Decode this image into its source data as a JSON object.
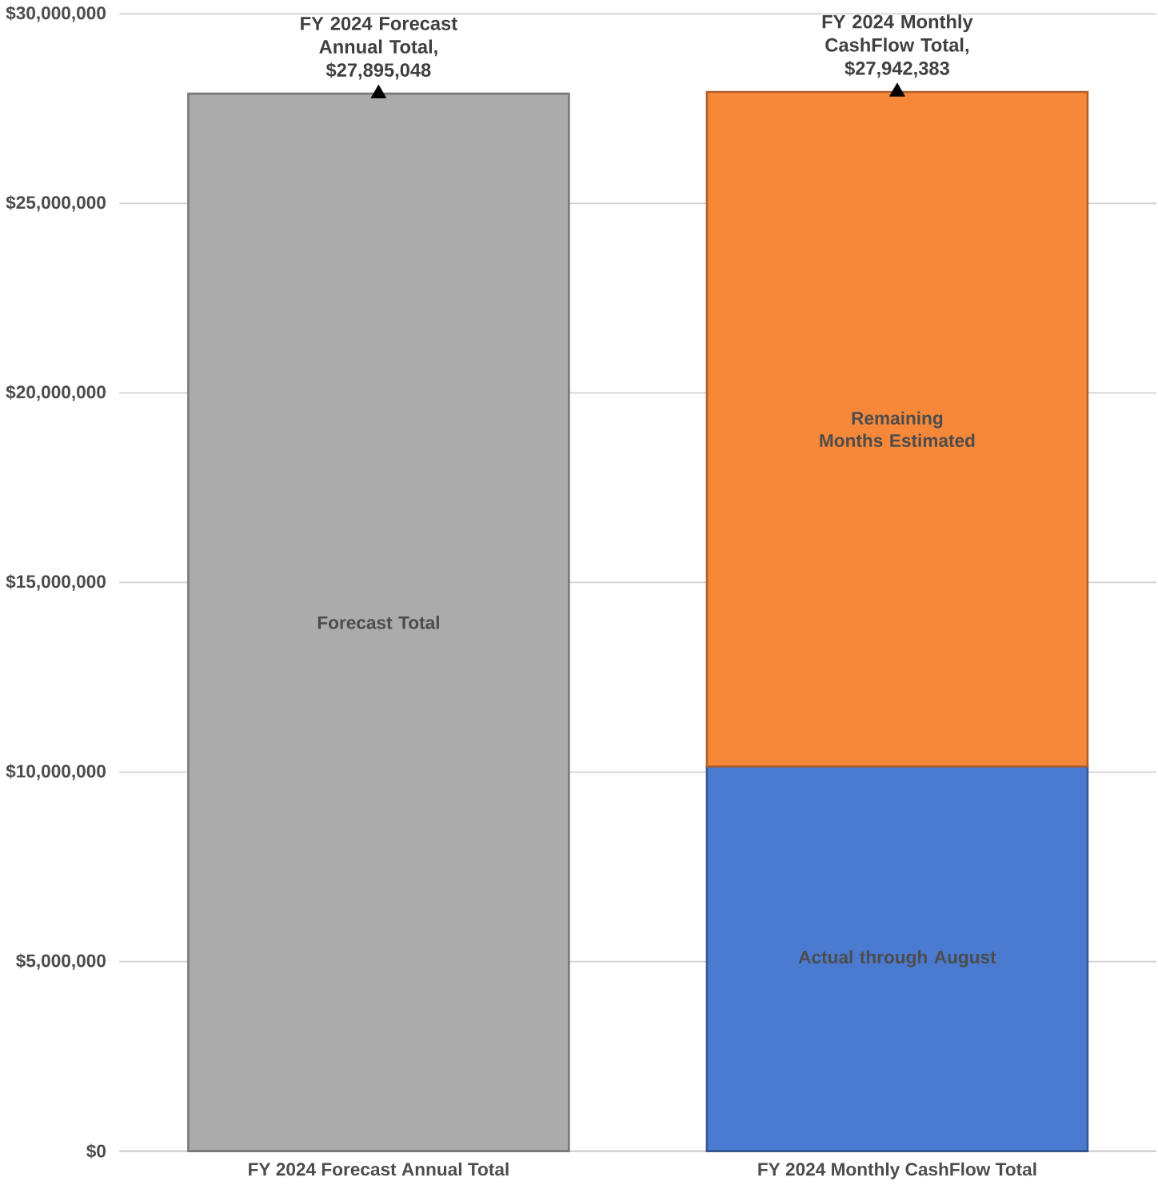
{
  "chart_data": {
    "type": "bar",
    "stacked": true,
    "categories": [
      "FY 2024 Forecast Annual Total",
      "FY 2024 Monthly CashFlow Total"
    ],
    "series": [
      {
        "name": "Forecast Total",
        "color": "#ababab",
        "values": [
          27895048,
          null
        ]
      },
      {
        "name": "Actual through August",
        "color": "#4a7bd0",
        "values": [
          null,
          10150000
        ]
      },
      {
        "name": "Remaining Months Estimated",
        "color": "#f7883a",
        "values": [
          null,
          17790000
        ]
      },
      {
        "type": "scatter",
        "marker": "triangle",
        "color": "#000000",
        "x": [
          "FY 2024 Forecast Annual Total",
          "FY 2024 Monthly CashFlow Total"
        ],
        "values": [
          27895048,
          27942383
        ]
      }
    ],
    "ylim": [
      0,
      30000000
    ],
    "yticks": [
      {
        "value": 0,
        "label": "$0"
      },
      {
        "value": 5000000,
        "label": "$5,000,000"
      },
      {
        "value": 10000000,
        "label": "$10,000,000"
      },
      {
        "value": 15000000,
        "label": "$15,000,000"
      },
      {
        "value": 20000000,
        "label": "$20,000,000"
      },
      {
        "value": 25000000,
        "label": "$25,000,000"
      },
      {
        "value": 30000000,
        "label": "$30,000,000"
      }
    ],
    "grid": "y",
    "annotations": [
      {
        "text": "FY 2024 Forecast Annual Total, $27,895,048",
        "x": "FY 2024 Forecast Annual Total",
        "y": 27895048
      },
      {
        "text": "FY 2024 Monthly CashFlow Total, $27,942,383",
        "x": "FY 2024 Monthly CashFlow Total",
        "y": 27942383
      }
    ]
  }
}
